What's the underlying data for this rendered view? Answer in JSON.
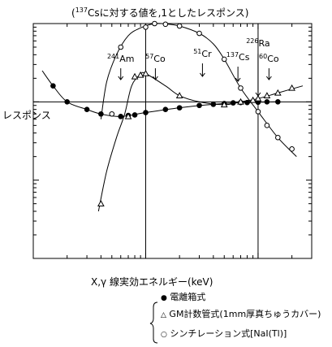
{
  "chart_data": {
    "type": "scatter",
    "title": "(137Csに対する値を,1としたレスポンス)",
    "title_parts": {
      "open": "(",
      "sup": "137",
      "rest": "Csに対する値を,1としたレスポンス)"
    },
    "xlabel": "X,γ 線実効エネルギー(keV)",
    "ylabel": "レスポンス",
    "xscale": "log",
    "xlim": [
      10,
      3000
    ],
    "yscale": "log",
    "ylim": [
      0.01,
      10
    ],
    "reference_y": 1,
    "reference_x": [
      100,
      1000
    ],
    "grid": false,
    "legend_placement": "bottom-right",
    "markers": [
      {
        "name": "241Am",
        "sup": "241",
        "sym": "Am",
        "x": 60
      },
      {
        "name": "57Co",
        "sup": "57",
        "sym": "Co",
        "x": 122
      },
      {
        "name": "51Cr",
        "sup": "51",
        "sym": "Cr",
        "x": 320
      },
      {
        "name": "137Cs",
        "sup": "137",
        "sym": "Cs",
        "x": 662
      },
      {
        "name": "226Ra",
        "sup": "226",
        "sym": "Ra",
        "x": 1000
      },
      {
        "name": "60Co",
        "sup": "60",
        "sym": "Co",
        "x": 1250
      }
    ],
    "series": [
      {
        "name": "電離箱式",
        "marker": "filled-circle",
        "points": [
          [
            15,
            1.6
          ],
          [
            20,
            1.0
          ],
          [
            30,
            0.8
          ],
          [
            40,
            0.7
          ],
          [
            60,
            0.65
          ],
          [
            70,
            0.67
          ],
          [
            80,
            0.68
          ],
          [
            100,
            0.73
          ],
          [
            150,
            0.8
          ],
          [
            200,
            0.84
          ],
          [
            300,
            0.9
          ],
          [
            400,
            0.93
          ],
          [
            500,
            0.95
          ],
          [
            600,
            0.97
          ],
          [
            700,
            0.98
          ],
          [
            800,
            0.98
          ],
          [
            1000,
            0.99
          ],
          [
            1200,
            1.0
          ],
          [
            1500,
            1.0
          ]
        ],
        "curve": [
          [
            12,
            2.5
          ],
          [
            15,
            1.6
          ],
          [
            20,
            1.0
          ],
          [
            30,
            0.8
          ],
          [
            40,
            0.7
          ],
          [
            60,
            0.65
          ],
          [
            100,
            0.73
          ],
          [
            200,
            0.84
          ],
          [
            400,
            0.93
          ],
          [
            700,
            0.98
          ],
          [
            1000,
            0.99
          ],
          [
            1500,
            1.0
          ]
        ]
      },
      {
        "name": "GM計数管式(1mm厚真ちゅうカバー)",
        "marker": "open-triangle",
        "points": [
          [
            40,
            0.05
          ],
          [
            70,
            0.65
          ],
          [
            80,
            2.1
          ],
          [
            90,
            2.2
          ],
          [
            100,
            2.3
          ],
          [
            200,
            1.2
          ],
          [
            500,
            0.92
          ],
          [
            700,
            1.0
          ],
          [
            900,
            1.05
          ],
          [
            1000,
            1.1
          ],
          [
            1200,
            1.2
          ],
          [
            1500,
            1.3
          ],
          [
            2000,
            1.5
          ]
        ],
        "curve": [
          [
            38,
            0.04
          ],
          [
            45,
            0.13
          ],
          [
            55,
            0.35
          ],
          [
            65,
            0.7
          ],
          [
            75,
            1.6
          ],
          [
            90,
            2.25
          ],
          [
            100,
            2.3
          ],
          [
            150,
            1.6
          ],
          [
            200,
            1.2
          ],
          [
            300,
            1.0
          ],
          [
            500,
            0.92
          ],
          [
            700,
            1.0
          ],
          [
            1000,
            1.1
          ],
          [
            1500,
            1.3
          ],
          [
            2500,
            1.6
          ]
        ]
      },
      {
        "name": "シンチレーション式[NaI(Tl)]",
        "marker": "open-circle",
        "points": [
          [
            50,
            0.7
          ],
          [
            60,
            5.0
          ],
          [
            100,
            9.0
          ],
          [
            120,
            10.0
          ],
          [
            150,
            9.8
          ],
          [
            200,
            9.3
          ],
          [
            300,
            7.5
          ],
          [
            500,
            3.5
          ],
          [
            700,
            1.5
          ],
          [
            1000,
            0.75
          ],
          [
            1200,
            0.5
          ],
          [
            1500,
            0.35
          ],
          [
            2000,
            0.25
          ]
        ],
        "curve": [
          [
            40,
            0.6
          ],
          [
            45,
            1.8
          ],
          [
            55,
            4.0
          ],
          [
            70,
            7.0
          ],
          [
            90,
            8.8
          ],
          [
            120,
            10.0
          ],
          [
            150,
            9.9
          ],
          [
            200,
            9.3
          ],
          [
            300,
            7.5
          ],
          [
            400,
            5.5
          ],
          [
            500,
            3.5
          ],
          [
            700,
            1.5
          ],
          [
            1000,
            0.75
          ],
          [
            1500,
            0.35
          ],
          [
            2200,
            0.2
          ]
        ]
      }
    ]
  },
  "legend": {
    "items": [
      {
        "symbol": "●",
        "label": "電離箱式"
      },
      {
        "symbol": "△",
        "label": "GM計数管式(1mm厚真ちゅうカバー)"
      },
      {
        "symbol": "○",
        "label": "シンチレーション式[NaI(Tl)]"
      }
    ]
  }
}
